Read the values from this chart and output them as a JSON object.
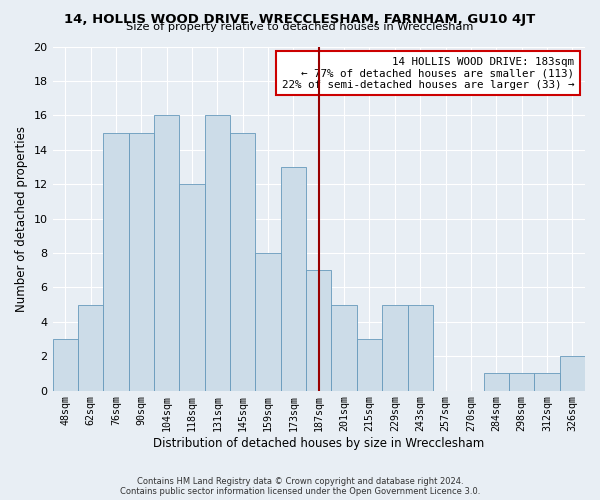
{
  "title": "14, HOLLIS WOOD DRIVE, WRECCLESHAM, FARNHAM, GU10 4JT",
  "subtitle": "Size of property relative to detached houses in Wrecclesham",
  "xlabel": "Distribution of detached houses by size in Wrecclesham",
  "ylabel": "Number of detached properties",
  "bar_color": "#ccdce8",
  "bar_edge_color": "#6699bb",
  "categories": [
    "48sqm",
    "62sqm",
    "76sqm",
    "90sqm",
    "104sqm",
    "118sqm",
    "131sqm",
    "145sqm",
    "159sqm",
    "173sqm",
    "187sqm",
    "201sqm",
    "215sqm",
    "229sqm",
    "243sqm",
    "257sqm",
    "270sqm",
    "284sqm",
    "298sqm",
    "312sqm",
    "326sqm"
  ],
  "values": [
    3,
    5,
    15,
    15,
    16,
    12,
    16,
    15,
    8,
    13,
    7,
    5,
    3,
    5,
    5,
    0,
    0,
    1,
    1,
    1,
    2
  ],
  "vline_x": 10.0,
  "vline_color": "#990000",
  "annotation_title": "14 HOLLIS WOOD DRIVE: 183sqm",
  "annotation_line1": "← 77% of detached houses are smaller (113)",
  "annotation_line2": "22% of semi-detached houses are larger (33) →",
  "annotation_box_color": "#ffffff",
  "annotation_box_edge_color": "#cc0000",
  "ylim": [
    0,
    20
  ],
  "yticks": [
    0,
    2,
    4,
    6,
    8,
    10,
    12,
    14,
    16,
    18,
    20
  ],
  "background_color": "#e8eef4",
  "grid_color": "#ffffff",
  "footer1": "Contains HM Land Registry data © Crown copyright and database right 2024.",
  "footer2": "Contains public sector information licensed under the Open Government Licence 3.0."
}
